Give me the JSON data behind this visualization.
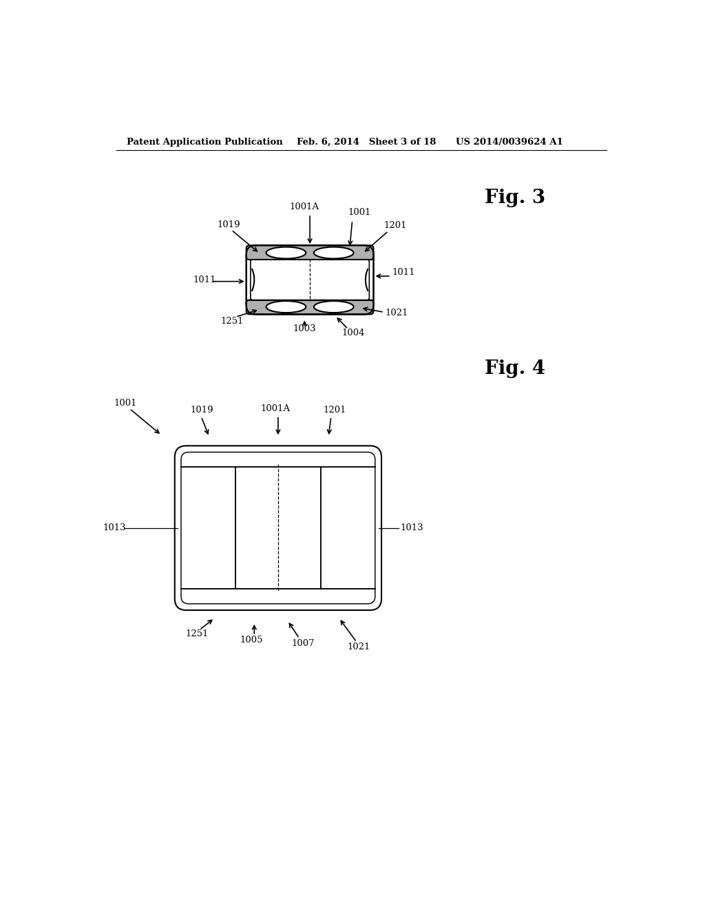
{
  "background_color": "#ffffff",
  "header_left": "Patent Application Publication",
  "header_center": "Feb. 6, 2014   Sheet 3 of 18",
  "header_right": "US 2014/0039624 A1",
  "line_color": "#000000",
  "text_color": "#000000",
  "annotation_fontsize": 9.5
}
